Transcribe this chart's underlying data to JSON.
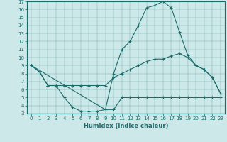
{
  "xlabel": "Humidex (Indice chaleur)",
  "bg_color": "#cce8e8",
  "line_color": "#1a6b6b",
  "xlim": [
    -0.5,
    23.5
  ],
  "ylim": [
    3,
    17
  ],
  "xticks": [
    0,
    1,
    2,
    3,
    4,
    5,
    6,
    7,
    8,
    9,
    10,
    11,
    12,
    13,
    14,
    15,
    16,
    17,
    18,
    19,
    20,
    21,
    22,
    23
  ],
  "yticks": [
    3,
    4,
    5,
    6,
    7,
    8,
    9,
    10,
    11,
    12,
    13,
    14,
    15,
    16,
    17
  ],
  "line1_x": [
    0,
    1,
    2,
    3,
    4,
    5,
    6,
    7,
    8,
    9,
    10,
    11,
    12,
    13,
    14,
    15,
    16,
    17,
    18,
    19,
    20,
    21,
    22,
    23
  ],
  "line1_y": [
    9.0,
    8.2,
    6.5,
    6.5,
    5.0,
    3.8,
    3.3,
    3.3,
    3.3,
    3.5,
    3.5,
    5.0,
    5.0,
    5.0,
    5.0,
    5.0,
    5.0,
    5.0,
    5.0,
    5.0,
    5.0,
    5.0,
    5.0,
    5.0
  ],
  "line2_x": [
    0,
    1,
    2,
    3,
    4,
    5,
    6,
    7,
    8,
    9,
    10,
    11,
    12,
    13,
    14,
    15,
    16,
    17,
    18,
    19,
    20,
    21,
    22,
    23
  ],
  "line2_y": [
    9.0,
    8.2,
    6.5,
    6.5,
    6.5,
    6.5,
    6.5,
    6.5,
    6.5,
    6.5,
    7.5,
    8.0,
    8.5,
    9.0,
    9.5,
    9.8,
    9.8,
    10.2,
    10.5,
    10.0,
    9.0,
    8.5,
    7.5,
    5.5
  ],
  "line3_x": [
    0,
    9,
    10,
    11,
    12,
    13,
    14,
    15,
    16,
    17,
    18,
    19,
    20,
    21,
    22,
    23
  ],
  "line3_y": [
    9.0,
    3.5,
    8.0,
    11.0,
    12.0,
    14.0,
    16.2,
    16.5,
    17.0,
    16.2,
    13.2,
    10.3,
    9.0,
    8.5,
    7.5,
    5.5
  ]
}
